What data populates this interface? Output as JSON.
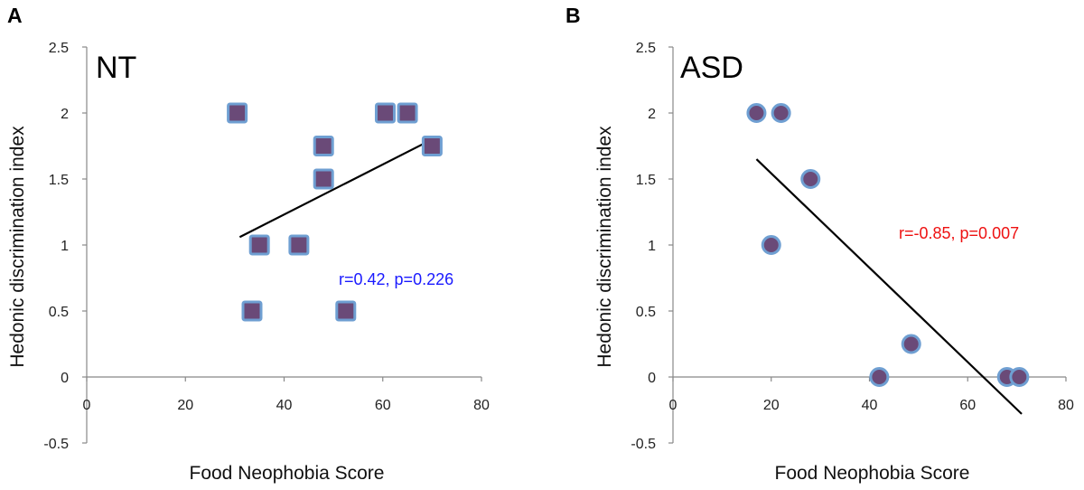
{
  "panels": [
    {
      "letter": "A"
    },
    {
      "letter": "B"
    }
  ],
  "chart_data": [
    {
      "type": "scatter",
      "group_label": "NT",
      "xlabel": "Food Neophobia Score",
      "ylabel": "Hedonic discrimination index",
      "xlim": [
        0,
        80
      ],
      "ylim": [
        -0.5,
        2.5
      ],
      "xticks": [
        "0",
        "20",
        "40",
        "60",
        "80"
      ],
      "yticks": [
        "-0.5",
        "0",
        "0.5",
        "1",
        "1.5",
        "2",
        "2.5"
      ],
      "marker": "square",
      "marker_color": "#6a4a78",
      "marker_edge_color": "#6f9fd2",
      "x": [
        30.5,
        35,
        33.5,
        43,
        48,
        48,
        52.5,
        60.5,
        65,
        70
      ],
      "y": [
        2,
        1,
        0.5,
        1,
        1.75,
        1.5,
        0.5,
        2,
        2,
        1.75
      ],
      "trendline": {
        "x": [
          31,
          70
        ],
        "y": [
          1.06,
          1.8
        ]
      },
      "stat_text": "r=0.42, p=0.226",
      "stat_color": "#1a1aff",
      "legend": "none",
      "grid": false
    },
    {
      "type": "scatter",
      "group_label": "ASD",
      "xlabel": "Food Neophobia Score",
      "ylabel": "Hedonic discrimination index",
      "xlim": [
        0,
        80
      ],
      "ylim": [
        -0.5,
        2.5
      ],
      "xticks": [
        "0",
        "20",
        "40",
        "60",
        "80"
      ],
      "yticks": [
        "-0.5",
        "0",
        "0.5",
        "1",
        "1.5",
        "2",
        "2.5"
      ],
      "marker": "circle",
      "marker_color": "#6a4a78",
      "marker_edge_color": "#6f9fd2",
      "x": [
        17,
        22,
        20,
        28,
        42,
        48.5,
        68,
        70.5
      ],
      "y": [
        2,
        2,
        1,
        1.5,
        0,
        0.25,
        0,
        0
      ],
      "trendline": {
        "x": [
          17,
          71
        ],
        "y": [
          1.65,
          -0.28
        ]
      },
      "stat_text": "r=-0.85, p=0.007",
      "stat_color": "#ee1111",
      "legend": "none",
      "grid": false
    }
  ]
}
